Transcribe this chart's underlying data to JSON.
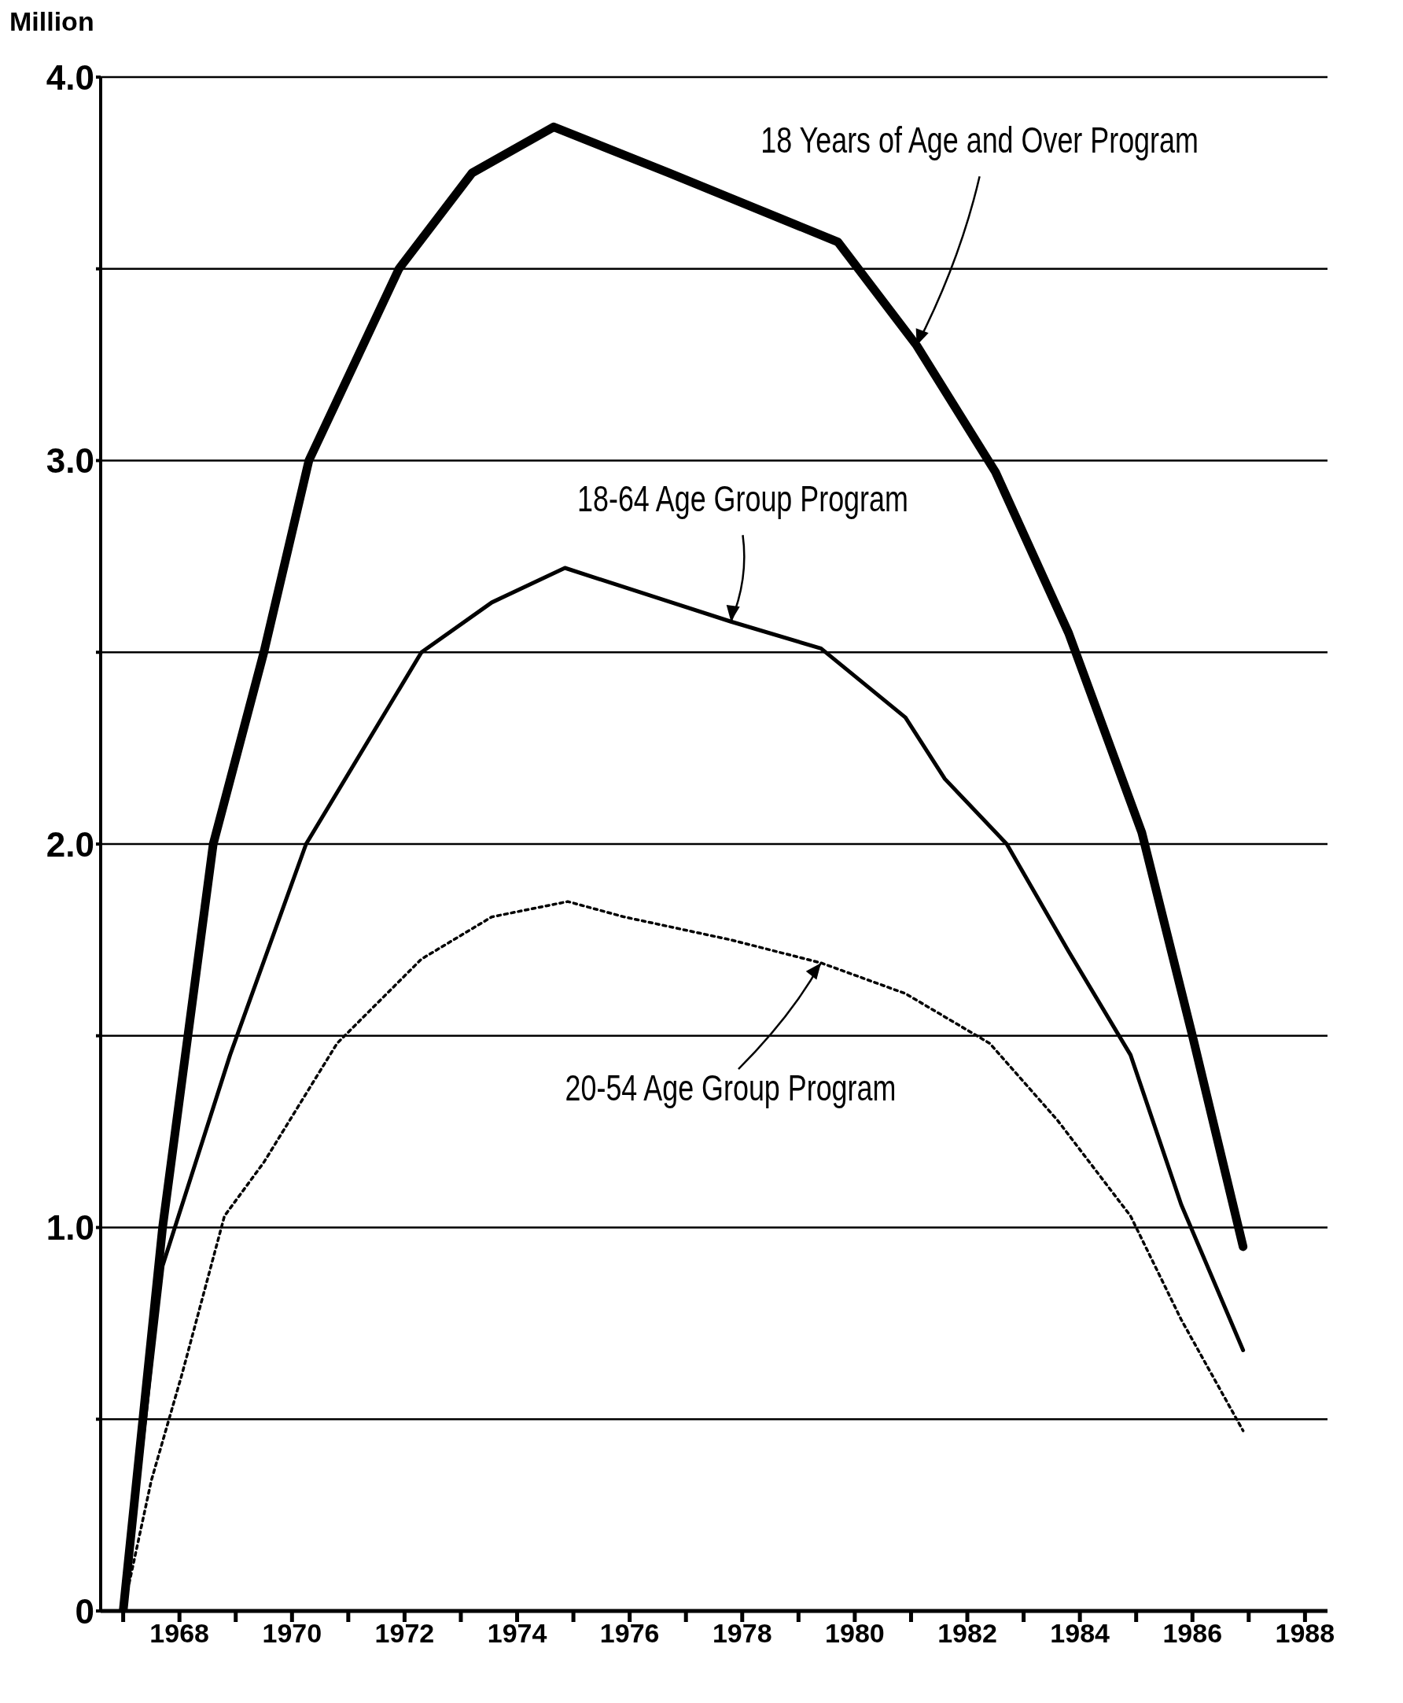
{
  "chart_data": {
    "type": "line",
    "ylabel": "Million",
    "xlim": [
      1966.6,
      1988.4
    ],
    "ylim": [
      0,
      4
    ],
    "xticks": [
      {
        "value": 1967,
        "label": null
      },
      1968,
      {
        "value": 1969,
        "label": null
      },
      1970,
      {
        "value": 1971,
        "label": null
      },
      1972,
      {
        "value": 1973,
        "label": null
      },
      1974,
      {
        "value": 1975,
        "label": null
      },
      1976,
      {
        "value": 1977,
        "label": null
      },
      1978,
      {
        "value": 1979,
        "label": null
      },
      1980,
      {
        "value": 1981,
        "label": null
      },
      1982,
      {
        "value": 1983,
        "label": null
      },
      1984,
      {
        "value": 1985,
        "label": null
      },
      1986,
      {
        "value": 1987,
        "label": null
      },
      1988
    ],
    "yticks": [
      0,
      {
        "value": 0.5,
        "label": null
      },
      {
        "value": 1,
        "label": "1.0"
      },
      {
        "value": 1.5,
        "label": null
      },
      {
        "value": 2,
        "label": "2.0"
      },
      {
        "value": 2.5,
        "label": null
      },
      {
        "value": 3,
        "label": "3.0"
      },
      {
        "value": 3.5,
        "label": null
      },
      {
        "value": 4,
        "label": "4.0"
      }
    ],
    "grid": "y",
    "legend": false,
    "marker": "none",
    "series": [
      {
        "color": "#000000",
        "line_style": "solid",
        "x": [
          1967.0,
          1967.7,
          1968.6,
          1969.5,
          1970.3,
          1971.9,
          1973.2,
          1974.65,
          1976.7,
          1979.7,
          1981.1,
          1982.5,
          1983.8,
          1985.1,
          1986.0,
          1986.9
        ],
        "values": [
          0,
          1.0,
          2.0,
          2.5,
          3.0,
          3.5,
          3.75,
          3.87,
          3.75,
          3.57,
          3.3,
          2.97,
          2.55,
          2.03,
          1.5,
          0.95
        ]
      },
      {
        "color": "#000000",
        "line_style": "solid",
        "x": [
          1967.0,
          1967.7,
          1968.9,
          1970.25,
          1972.3,
          1973.55,
          1974.85,
          1977.8,
          1979.4,
          1980.9,
          1981.6,
          1982.7,
          1983.8,
          1984.9,
          1985.8,
          1986.9
        ],
        "values": [
          0,
          0.9,
          1.45,
          2.0,
          2.5,
          2.63,
          2.72,
          2.58,
          2.51,
          2.33,
          2.17,
          2.0,
          1.72,
          1.45,
          1.06,
          0.68
        ]
      },
      {
        "color": "#000000",
        "line_style": "dotted",
        "x": [
          1967.0,
          1967.5,
          1968.05,
          1968.8,
          1969.5,
          1970.8,
          1972.3,
          1973.55,
          1974.9,
          1975.9,
          1977.8,
          1979.4,
          1980.9,
          1982.4,
          1983.6,
          1984.9,
          1985.8,
          1986.9
        ],
        "values": [
          0,
          0.34,
          0.62,
          1.03,
          1.17,
          1.48,
          1.7,
          1.81,
          1.85,
          1.81,
          1.75,
          1.69,
          1.61,
          1.48,
          1.28,
          1.03,
          0.76,
          0.47
        ]
      }
    ],
    "annotations": [
      {
        "text": "18 Years of Age and Over Program",
        "x": 1981.1,
        "y": 3.3
      },
      {
        "text": "18-64 Age Group Program",
        "x": 1977.8,
        "y": 2.58
      },
      {
        "text": "20-54 Age Group Program",
        "x": 1979.4,
        "y": 1.69
      }
    ]
  }
}
